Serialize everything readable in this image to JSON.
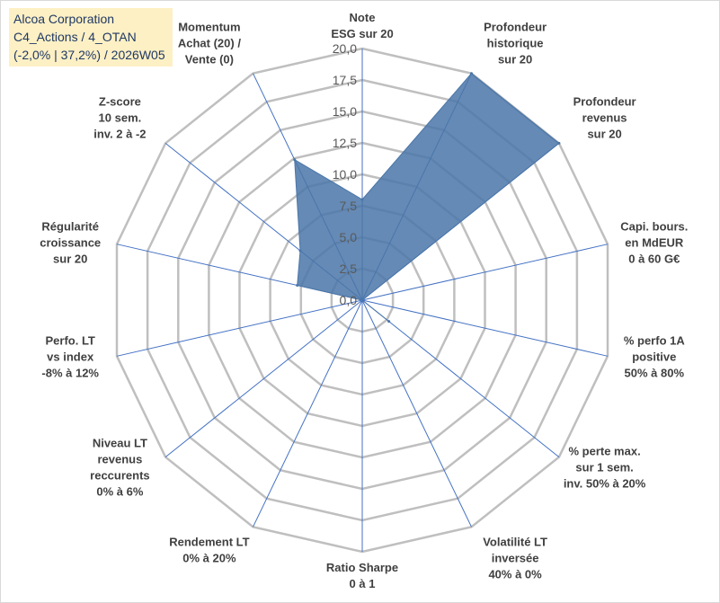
{
  "chart_data": {
    "type": "radar",
    "title_lines": [
      "Alcoa Corporation",
      "C4_Actions / 4_OTAN",
      "(-2,0% | 37,2%) / 2026W05"
    ],
    "rmin": 0,
    "rmax": 20,
    "tick_values": [
      0,
      2.5,
      5,
      7.5,
      10,
      12.5,
      15,
      17.5,
      20
    ],
    "tick_labels": [
      "0,0",
      "2,5",
      "5,0",
      "7,5",
      "10,0",
      "12,5",
      "15,0",
      "17,5",
      "20,0"
    ],
    "grid": true,
    "axes": [
      {
        "label": [
          "Note",
          "ESG sur 20"
        ],
        "value": 8
      },
      {
        "label": [
          "Profondeur",
          "historique",
          "sur 20"
        ],
        "value": 20
      },
      {
        "label": [
          "Profondeur",
          "revenus",
          "sur 20"
        ],
        "value": 20
      },
      {
        "label": [
          "Capi. bours.",
          "en MdEUR",
          "0 à 60 G€"
        ],
        "value": 0
      },
      {
        "label": [
          "% perfo 1A",
          "positive",
          "50% à 80%"
        ],
        "value": 0
      },
      {
        "label": [
          "% perte max.",
          "sur 1 sem.",
          "inv. 50% à 20%"
        ],
        "value": 2.7
      },
      {
        "label": [
          "Volatilité LT",
          "inversée",
          "40% à 0%"
        ],
        "value": 0
      },
      {
        "label": [
          "Ratio Sharpe",
          "0 à 1"
        ],
        "value": 0
      },
      {
        "label": [
          "Rendement LT",
          "0% à 20%"
        ],
        "value": 0
      },
      {
        "label": [
          "Niveau LT",
          "revenus",
          "reccurents",
          "0% à 6%"
        ],
        "value": 0
      },
      {
        "label": [
          "Perfo. LT",
          "vs index",
          "-8% à 12%"
        ],
        "value": 0
      },
      {
        "label": [
          "Régularité",
          "croissance",
          "sur 20"
        ],
        "value": 5.3
      },
      {
        "label": [
          "Z-score",
          "10 sem.",
          "inv. 2 à -2"
        ],
        "value": 6.3
      },
      {
        "label": [
          "Momentum",
          "Achat (20) /",
          "Vente (0)"
        ],
        "value": 12.4
      }
    ],
    "series": [
      {
        "name": "Alcoa Corporation",
        "color": "#4a76a8"
      }
    ]
  },
  "colors": {
    "grid": "#bfbfbf",
    "spoke": "#4472c4",
    "fill": "#4a76a8",
    "title_bg": "#fdf0c4",
    "title_text": "#1f3864"
  }
}
